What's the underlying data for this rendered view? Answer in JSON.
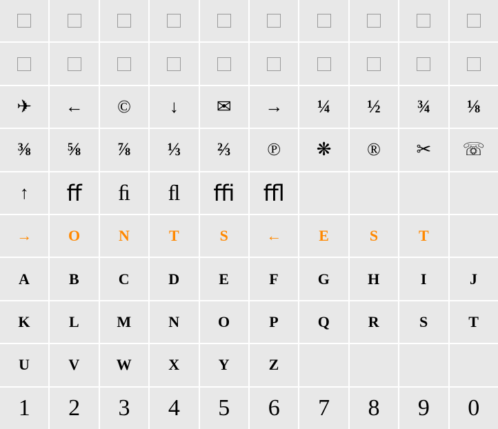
{
  "grid": {
    "columns": 10,
    "rows": 10,
    "background_color": "#e8e8e8",
    "gap_color": "#ffffff",
    "text_color": "#000000",
    "highlight_color": "#ff8800"
  },
  "cells": [
    {
      "r": 0,
      "c": 0,
      "type": "placeholder"
    },
    {
      "r": 0,
      "c": 1,
      "type": "placeholder"
    },
    {
      "r": 0,
      "c": 2,
      "type": "placeholder"
    },
    {
      "r": 0,
      "c": 3,
      "type": "placeholder"
    },
    {
      "r": 0,
      "c": 4,
      "type": "placeholder"
    },
    {
      "r": 0,
      "c": 5,
      "type": "placeholder"
    },
    {
      "r": 0,
      "c": 6,
      "type": "placeholder"
    },
    {
      "r": 0,
      "c": 7,
      "type": "placeholder"
    },
    {
      "r": 0,
      "c": 8,
      "type": "placeholder"
    },
    {
      "r": 0,
      "c": 9,
      "type": "placeholder"
    },
    {
      "r": 1,
      "c": 0,
      "type": "placeholder"
    },
    {
      "r": 1,
      "c": 1,
      "type": "placeholder"
    },
    {
      "r": 1,
      "c": 2,
      "type": "placeholder"
    },
    {
      "r": 1,
      "c": 3,
      "type": "placeholder"
    },
    {
      "r": 1,
      "c": 4,
      "type": "placeholder"
    },
    {
      "r": 1,
      "c": 5,
      "type": "placeholder"
    },
    {
      "r": 1,
      "c": 6,
      "type": "placeholder"
    },
    {
      "r": 1,
      "c": 7,
      "type": "placeholder"
    },
    {
      "r": 1,
      "c": 8,
      "type": "placeholder"
    },
    {
      "r": 1,
      "c": 9,
      "type": "placeholder"
    },
    {
      "r": 2,
      "c": 0,
      "type": "glyph",
      "text": "✈",
      "class": "sym"
    },
    {
      "r": 2,
      "c": 1,
      "type": "glyph",
      "text": "←",
      "class": "sym"
    },
    {
      "r": 2,
      "c": 2,
      "type": "glyph",
      "text": "©",
      "class": "sym"
    },
    {
      "r": 2,
      "c": 3,
      "type": "glyph",
      "text": "↓",
      "class": "sym"
    },
    {
      "r": 2,
      "c": 4,
      "type": "glyph",
      "text": "✉",
      "class": "sym"
    },
    {
      "r": 2,
      "c": 5,
      "type": "glyph",
      "text": "→",
      "class": "sym"
    },
    {
      "r": 2,
      "c": 6,
      "type": "glyph",
      "text": "¼",
      "class": "frac"
    },
    {
      "r": 2,
      "c": 7,
      "type": "glyph",
      "text": "½",
      "class": "frac"
    },
    {
      "r": 2,
      "c": 8,
      "type": "glyph",
      "text": "¾",
      "class": "frac"
    },
    {
      "r": 2,
      "c": 9,
      "type": "glyph",
      "text": "⅛",
      "class": "frac"
    },
    {
      "r": 3,
      "c": 0,
      "type": "glyph",
      "text": "⅜",
      "class": "frac"
    },
    {
      "r": 3,
      "c": 1,
      "type": "glyph",
      "text": "⅝",
      "class": "frac"
    },
    {
      "r": 3,
      "c": 2,
      "type": "glyph",
      "text": "⅞",
      "class": "frac"
    },
    {
      "r": 3,
      "c": 3,
      "type": "glyph",
      "text": "⅓",
      "class": "frac"
    },
    {
      "r": 3,
      "c": 4,
      "type": "glyph",
      "text": "⅔",
      "class": "frac"
    },
    {
      "r": 3,
      "c": 5,
      "type": "glyph",
      "text": "℗",
      "class": "sym"
    },
    {
      "r": 3,
      "c": 6,
      "type": "glyph",
      "text": "❋",
      "class": "sym"
    },
    {
      "r": 3,
      "c": 7,
      "type": "glyph",
      "text": "®",
      "class": "sym"
    },
    {
      "r": 3,
      "c": 8,
      "type": "glyph",
      "text": "✂",
      "class": "sym"
    },
    {
      "r": 3,
      "c": 9,
      "type": "glyph",
      "text": "☏",
      "class": "sym"
    },
    {
      "r": 4,
      "c": 0,
      "type": "glyph",
      "text": "↑",
      "class": "sym"
    },
    {
      "r": 4,
      "c": 1,
      "type": "glyph",
      "text": "ﬀ",
      "class": "lig"
    },
    {
      "r": 4,
      "c": 2,
      "type": "glyph",
      "text": "ﬁ",
      "class": "lig"
    },
    {
      "r": 4,
      "c": 3,
      "type": "glyph",
      "text": "ﬂ",
      "class": "lig"
    },
    {
      "r": 4,
      "c": 4,
      "type": "glyph",
      "text": "ﬃ",
      "class": "lig"
    },
    {
      "r": 4,
      "c": 5,
      "type": "glyph",
      "text": "ﬄ",
      "class": "lig"
    },
    {
      "r": 4,
      "c": 6,
      "type": "empty"
    },
    {
      "r": 4,
      "c": 7,
      "type": "empty"
    },
    {
      "r": 4,
      "c": 8,
      "type": "empty"
    },
    {
      "r": 4,
      "c": 9,
      "type": "empty"
    },
    {
      "r": 5,
      "c": 0,
      "type": "glyph",
      "text": "→",
      "class": "highlight"
    },
    {
      "r": 5,
      "c": 1,
      "type": "glyph",
      "text": "O",
      "class": "highlight"
    },
    {
      "r": 5,
      "c": 2,
      "type": "glyph",
      "text": "N",
      "class": "highlight"
    },
    {
      "r": 5,
      "c": 3,
      "type": "glyph",
      "text": "T",
      "class": "highlight"
    },
    {
      "r": 5,
      "c": 4,
      "type": "glyph",
      "text": "S",
      "class": "highlight"
    },
    {
      "r": 5,
      "c": 5,
      "type": "glyph",
      "text": "←",
      "class": "highlight"
    },
    {
      "r": 5,
      "c": 6,
      "type": "glyph",
      "text": "E",
      "class": "highlight"
    },
    {
      "r": 5,
      "c": 7,
      "type": "glyph",
      "text": "S",
      "class": "highlight"
    },
    {
      "r": 5,
      "c": 8,
      "type": "glyph",
      "text": "T",
      "class": "highlight"
    },
    {
      "r": 5,
      "c": 9,
      "type": "empty"
    },
    {
      "r": 6,
      "c": 0,
      "type": "glyph",
      "text": "A",
      "class": "smallcap"
    },
    {
      "r": 6,
      "c": 1,
      "type": "glyph",
      "text": "B",
      "class": "smallcap"
    },
    {
      "r": 6,
      "c": 2,
      "type": "glyph",
      "text": "C",
      "class": "smallcap"
    },
    {
      "r": 6,
      "c": 3,
      "type": "glyph",
      "text": "D",
      "class": "smallcap"
    },
    {
      "r": 6,
      "c": 4,
      "type": "glyph",
      "text": "E",
      "class": "smallcap"
    },
    {
      "r": 6,
      "c": 5,
      "type": "glyph",
      "text": "F",
      "class": "smallcap"
    },
    {
      "r": 6,
      "c": 6,
      "type": "glyph",
      "text": "G",
      "class": "smallcap"
    },
    {
      "r": 6,
      "c": 7,
      "type": "glyph",
      "text": "H",
      "class": "smallcap"
    },
    {
      "r": 6,
      "c": 8,
      "type": "glyph",
      "text": "I",
      "class": "smallcap"
    },
    {
      "r": 6,
      "c": 9,
      "type": "glyph",
      "text": "J",
      "class": "smallcap"
    },
    {
      "r": 7,
      "c": 0,
      "type": "glyph",
      "text": "K",
      "class": "smallcap"
    },
    {
      "r": 7,
      "c": 1,
      "type": "glyph",
      "text": "L",
      "class": "smallcap"
    },
    {
      "r": 7,
      "c": 2,
      "type": "glyph",
      "text": "M",
      "class": "smallcap"
    },
    {
      "r": 7,
      "c": 3,
      "type": "glyph",
      "text": "N",
      "class": "smallcap"
    },
    {
      "r": 7,
      "c": 4,
      "type": "glyph",
      "text": "O",
      "class": "smallcap"
    },
    {
      "r": 7,
      "c": 5,
      "type": "glyph",
      "text": "P",
      "class": "smallcap"
    },
    {
      "r": 7,
      "c": 6,
      "type": "glyph",
      "text": "Q",
      "class": "smallcap"
    },
    {
      "r": 7,
      "c": 7,
      "type": "glyph",
      "text": "R",
      "class": "smallcap"
    },
    {
      "r": 7,
      "c": 8,
      "type": "glyph",
      "text": "S",
      "class": "smallcap"
    },
    {
      "r": 7,
      "c": 9,
      "type": "glyph",
      "text": "T",
      "class": "smallcap"
    },
    {
      "r": 8,
      "c": 0,
      "type": "glyph",
      "text": "U",
      "class": "smallcap"
    },
    {
      "r": 8,
      "c": 1,
      "type": "glyph",
      "text": "V",
      "class": "smallcap"
    },
    {
      "r": 8,
      "c": 2,
      "type": "glyph",
      "text": "W",
      "class": "smallcap"
    },
    {
      "r": 8,
      "c": 3,
      "type": "glyph",
      "text": "X",
      "class": "smallcap"
    },
    {
      "r": 8,
      "c": 4,
      "type": "glyph",
      "text": "Y",
      "class": "smallcap"
    },
    {
      "r": 8,
      "c": 5,
      "type": "glyph",
      "text": "Z",
      "class": "smallcap"
    },
    {
      "r": 8,
      "c": 6,
      "type": "empty"
    },
    {
      "r": 8,
      "c": 7,
      "type": "empty"
    },
    {
      "r": 8,
      "c": 8,
      "type": "empty"
    },
    {
      "r": 8,
      "c": 9,
      "type": "empty"
    },
    {
      "r": 9,
      "c": 0,
      "type": "glyph",
      "text": "1",
      "class": "digit"
    },
    {
      "r": 9,
      "c": 1,
      "type": "glyph",
      "text": "2",
      "class": "digit"
    },
    {
      "r": 9,
      "c": 2,
      "type": "glyph",
      "text": "3",
      "class": "digit"
    },
    {
      "r": 9,
      "c": 3,
      "type": "glyph",
      "text": "4",
      "class": "digit"
    },
    {
      "r": 9,
      "c": 4,
      "type": "glyph",
      "text": "5",
      "class": "digit"
    },
    {
      "r": 9,
      "c": 5,
      "type": "glyph",
      "text": "6",
      "class": "digit"
    },
    {
      "r": 9,
      "c": 6,
      "type": "glyph",
      "text": "7",
      "class": "digit"
    },
    {
      "r": 9,
      "c": 7,
      "type": "glyph",
      "text": "8",
      "class": "digit"
    },
    {
      "r": 9,
      "c": 8,
      "type": "glyph",
      "text": "9",
      "class": "digit"
    },
    {
      "r": 9,
      "c": 9,
      "type": "glyph",
      "text": "0",
      "class": "digit"
    }
  ]
}
